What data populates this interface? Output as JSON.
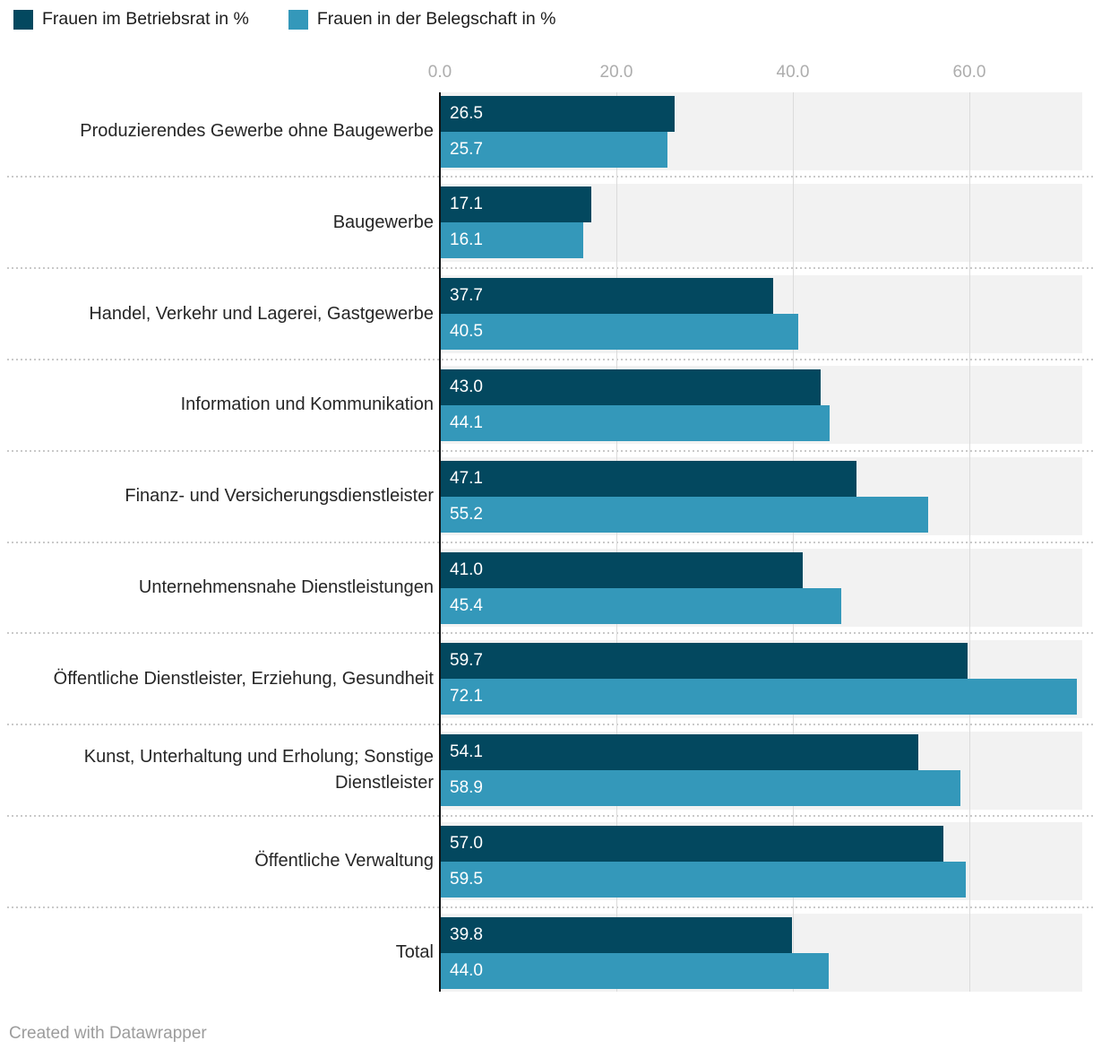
{
  "chart_data": {
    "type": "bar",
    "orientation": "horizontal",
    "grouped": true,
    "categories": [
      "Produzierendes Gewerbe ohne Baugewerbe",
      "Baugewerbe",
      "Handel, Verkehr und Lagerei, Gastgewerbe",
      "Information und Kommunikation",
      "Finanz- und Versicherungsdienstleister",
      "Unternehmensnahe Dienstleistungen",
      "Öffentliche Dienstleister, Erziehung, Gesundheit",
      "Kunst, Unterhaltung und Erholung; Sonstige Dienstleister",
      "Öffentliche Verwaltung",
      "Total"
    ],
    "series": [
      {
        "name": "Frauen im Betriebsrat in %",
        "color": "#03485f",
        "values": [
          26.5,
          17.1,
          37.7,
          43.0,
          47.1,
          41.0,
          59.7,
          54.1,
          57.0,
          39.8
        ],
        "value_labels": [
          "26.5",
          "17.1",
          "37.7",
          "43.0",
          "47.1",
          "41.0",
          "59.7",
          "54.1",
          "57.0",
          "39.8"
        ]
      },
      {
        "name": "Frauen in der Belegschaft in %",
        "color": "#3498ba",
        "values": [
          25.7,
          16.1,
          40.5,
          44.1,
          55.2,
          45.4,
          72.1,
          58.9,
          59.5,
          44.0
        ],
        "value_labels": [
          "25.7",
          "16.1",
          "40.5",
          "44.1",
          "55.2",
          "45.4",
          "72.1",
          "58.9",
          "59.5",
          "44.0"
        ]
      }
    ],
    "x_axis": {
      "position": "top",
      "tick_labels": [
        "0.0",
        "20.0",
        "40.0",
        "60.0"
      ],
      "tick_values": [
        0,
        20,
        40,
        60
      ],
      "min": 0,
      "max": 72.8
    },
    "legend_position": "top-left",
    "grid": "vertical",
    "colors": {
      "row_band": "#f2f2f2",
      "gridline": "#dbdbdb",
      "separator": "#c9c9c9",
      "axis_line": "#111111",
      "value_label": "#ffffff"
    }
  },
  "footer": {
    "attribution": "Created with Datawrapper"
  }
}
